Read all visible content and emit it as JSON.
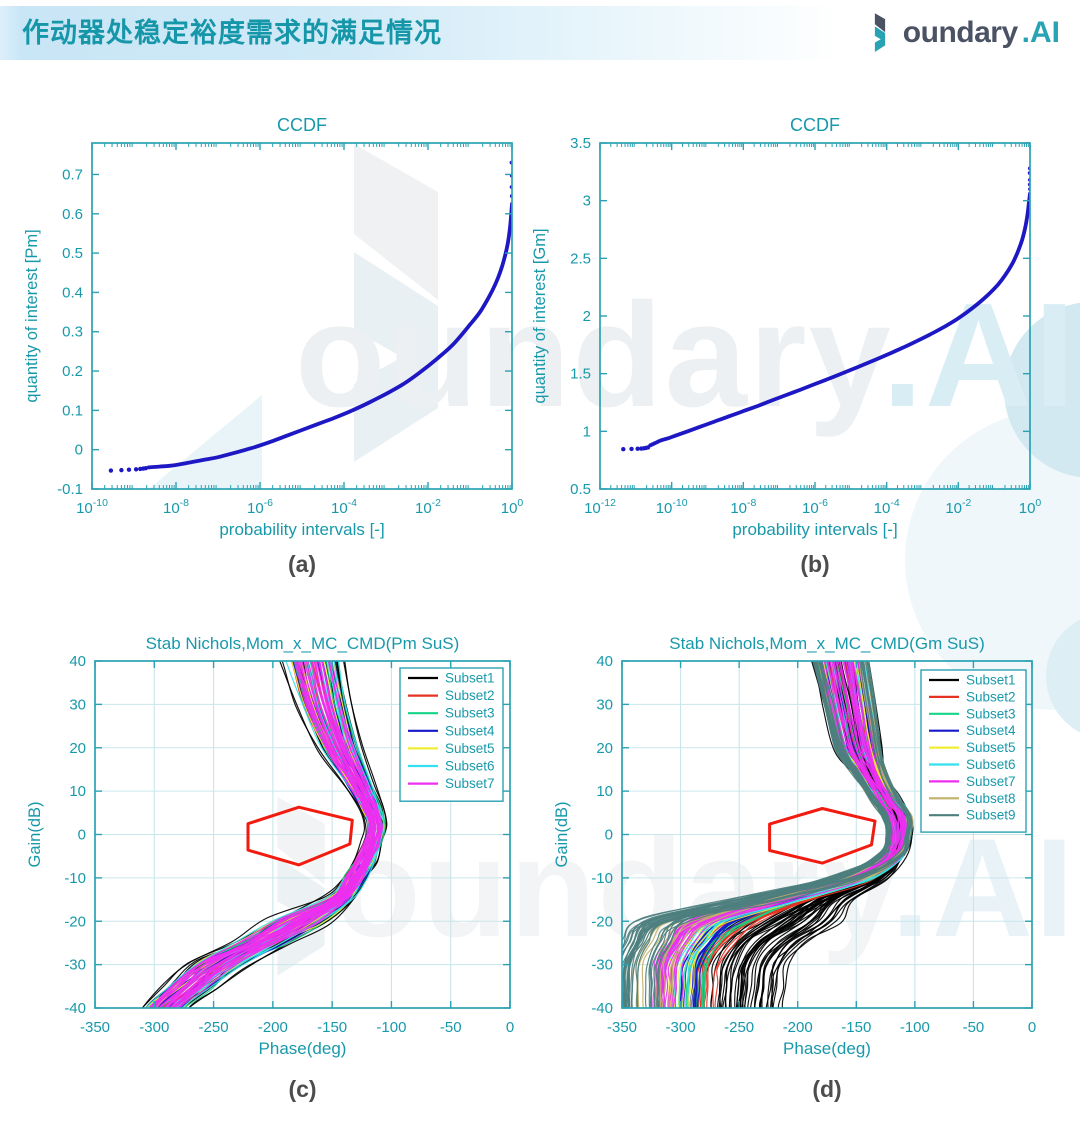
{
  "header": {
    "title": "作动器处稳定裕度需求的满足情况",
    "logo_text": "oundary",
    "logo_suffix": ".AI"
  },
  "watermark": {
    "text": "oundary",
    "suffix": ".AI"
  },
  "colors": {
    "axis_teal": "#2aa2b3",
    "label_teal": "#1899ab",
    "grid": "#c9e6ea",
    "curve_blue": "#1d18c4",
    "hexagon_red": "#f21b10",
    "caption_gray": "#4d4d4d",
    "header_text": "#1697a9",
    "logo_dark": "#4a5264",
    "logo_teal": "#27a3b4",
    "legend_border": "#2aa2b3"
  },
  "chart_data": [
    {
      "id": "a",
      "type": "scatter",
      "title": "CCDF",
      "caption": "(a)",
      "xlabel": "probability intervals [-]",
      "ylabel": "quantity of interest [Pm]",
      "xscale": "log",
      "xlim": [
        -10,
        0
      ],
      "xticks": [
        -10,
        -8,
        -6,
        -4,
        -2,
        0
      ],
      "ylim": [
        -0.1,
        0.78
      ],
      "yticks": [
        -0.1,
        0,
        0.1,
        0.2,
        0.3,
        0.4,
        0.5,
        0.6,
        0.7
      ],
      "grid": false,
      "curve": [
        [
          -8.65,
          -0.045
        ],
        [
          -8.4,
          -0.043
        ],
        [
          -8.15,
          -0.041
        ],
        [
          -7.9,
          -0.037
        ],
        [
          -7.6,
          -0.031
        ],
        [
          -7.3,
          -0.025
        ],
        [
          -7,
          -0.019
        ],
        [
          -6.6,
          -0.008
        ],
        [
          -6.2,
          0.004
        ],
        [
          -5.8,
          0.018
        ],
        [
          -5.4,
          0.034
        ],
        [
          -5,
          0.05
        ],
        [
          -4.6,
          0.066
        ],
        [
          -4.2,
          0.082
        ],
        [
          -3.8,
          0.1
        ],
        [
          -3.4,
          0.12
        ],
        [
          -3,
          0.142
        ],
        [
          -2.6,
          0.166
        ],
        [
          -2.2,
          0.196
        ],
        [
          -1.8,
          0.23
        ],
        [
          -1.4,
          0.268
        ],
        [
          -1,
          0.318
        ],
        [
          -0.75,
          0.352
        ],
        [
          -0.55,
          0.388
        ],
        [
          -0.4,
          0.42
        ],
        [
          -0.28,
          0.452
        ],
        [
          -0.18,
          0.487
        ],
        [
          -0.1,
          0.525
        ],
        [
          -0.05,
          0.562
        ],
        [
          -0.02,
          0.598
        ],
        [
          0,
          0.625
        ]
      ],
      "lead_dots": [
        [
          -9.55,
          -0.053
        ],
        [
          -9.3,
          -0.052
        ],
        [
          -9.12,
          -0.051
        ],
        [
          -8.95,
          -0.05
        ],
        [
          -8.85,
          -0.049
        ],
        [
          -8.78,
          -0.048
        ],
        [
          -8.72,
          -0.047
        ]
      ],
      "end_dots": [
        [
          -0.005,
          0.645
        ],
        [
          -0.01,
          0.668
        ],
        [
          -0.005,
          0.697
        ],
        [
          -0.012,
          0.73
        ]
      ]
    },
    {
      "id": "b",
      "type": "scatter",
      "title": "CCDF",
      "caption": "(b)",
      "xlabel": "probability intervals [-]",
      "ylabel": "quantity of interest [Gm]",
      "xscale": "log",
      "xlim": [
        -12,
        0
      ],
      "xticks": [
        -12,
        -10,
        -8,
        -6,
        -4,
        -2,
        0
      ],
      "ylim": [
        0.5,
        3.5
      ],
      "yticks": [
        0.5,
        1,
        1.5,
        2,
        2.5,
        3,
        3.5
      ],
      "grid": false,
      "curve": [
        [
          -10.6,
          0.878
        ],
        [
          -10.45,
          0.9
        ],
        [
          -10.3,
          0.921
        ],
        [
          -10.1,
          0.94
        ],
        [
          -9.9,
          0.962
        ],
        [
          -9.6,
          0.995
        ],
        [
          -9.2,
          1.04
        ],
        [
          -8.8,
          1.085
        ],
        [
          -8.4,
          1.13
        ],
        [
          -8,
          1.175
        ],
        [
          -7.6,
          1.22
        ],
        [
          -7.2,
          1.268
        ],
        [
          -6.8,
          1.315
        ],
        [
          -6.4,
          1.362
        ],
        [
          -6,
          1.41
        ],
        [
          -5.6,
          1.458
        ],
        [
          -5.2,
          1.508
        ],
        [
          -4.8,
          1.558
        ],
        [
          -4.4,
          1.61
        ],
        [
          -4,
          1.663
        ],
        [
          -3.6,
          1.718
        ],
        [
          -3.2,
          1.776
        ],
        [
          -2.8,
          1.838
        ],
        [
          -2.4,
          1.905
        ],
        [
          -2,
          1.98
        ],
        [
          -1.6,
          2.07
        ],
        [
          -1.2,
          2.175
        ],
        [
          -0.9,
          2.27
        ],
        [
          -0.7,
          2.35
        ],
        [
          -0.5,
          2.45
        ],
        [
          -0.35,
          2.55
        ],
        [
          -0.22,
          2.66
        ],
        [
          -0.13,
          2.77
        ],
        [
          -0.07,
          2.88
        ],
        [
          -0.03,
          2.98
        ],
        [
          0,
          3.06
        ]
      ],
      "lead_dots": [
        [
          -11.35,
          0.845
        ],
        [
          -11.12,
          0.847
        ],
        [
          -10.95,
          0.849
        ],
        [
          -10.85,
          0.851
        ],
        [
          -10.78,
          0.853
        ],
        [
          -10.72,
          0.856
        ],
        [
          -10.66,
          0.86
        ]
      ],
      "end_dots": [
        [
          0,
          3.1
        ],
        [
          -0.005,
          3.14
        ],
        [
          -0.003,
          3.18
        ],
        [
          -0.008,
          3.24
        ],
        [
          -0.004,
          3.28
        ]
      ]
    },
    {
      "id": "c",
      "type": "nichols",
      "title": "Stab Nichols,Mom_x_MC_CMD(Pm SuS)",
      "caption": "(c)",
      "xlabel": "Phase(deg)",
      "ylabel": "Gain(dB)",
      "xlim": [
        -350,
        0
      ],
      "xticks": [
        -350,
        -300,
        -250,
        -200,
        -150,
        -100,
        -50,
        0
      ],
      "ylim": [
        -40,
        40
      ],
      "yticks": [
        -40,
        -30,
        -20,
        -10,
        0,
        10,
        20,
        30,
        40
      ],
      "grid": true,
      "base": [
        [
          -172,
          46
        ],
        [
          -166,
          40
        ],
        [
          -157,
          30
        ],
        [
          -144,
          20
        ],
        [
          -128,
          12
        ],
        [
          -117,
          6
        ],
        [
          -113,
          2
        ],
        [
          -116,
          -2
        ],
        [
          -122,
          -6
        ],
        [
          -131,
          -10
        ],
        [
          -144,
          -15
        ],
        [
          -178,
          -20
        ],
        [
          -210,
          -25
        ],
        [
          -247,
          -30
        ],
        [
          -270,
          -35
        ],
        [
          -291,
          -40
        ],
        [
          -304,
          -45
        ]
      ],
      "sym": [
        30,
        27,
        24,
        19,
        13,
        10,
        9,
        9,
        10,
        11,
        13,
        26,
        25,
        25,
        23,
        21,
        20
      ],
      "fan": [
        0,
        0,
        0,
        0,
        0,
        0,
        0,
        0,
        0,
        0,
        0,
        0,
        0,
        0,
        0,
        0,
        0
      ],
      "subsets": [
        {
          "label": "Subset1",
          "color": "#000000",
          "count": 20,
          "fband": [
            0.3,
            1.0
          ],
          "cband": [
            0,
            0
          ]
        },
        {
          "label": "Subset2",
          "color": "#e63222",
          "count": 10,
          "fband": [
            0.05,
            0.75
          ],
          "cband": [
            0,
            0
          ]
        },
        {
          "label": "Subset3",
          "color": "#16d487",
          "count": 10,
          "fband": [
            0.1,
            0.8
          ],
          "cband": [
            0,
            0
          ]
        },
        {
          "label": "Subset4",
          "color": "#1717cc",
          "count": 9,
          "fband": [
            0.05,
            0.7
          ],
          "cband": [
            0,
            0
          ]
        },
        {
          "label": "Subset5",
          "color": "#f2ee35",
          "count": 8,
          "fband": [
            0.15,
            0.7
          ],
          "cband": [
            0,
            0
          ]
        },
        {
          "label": "Subset6",
          "color": "#33e0ee",
          "count": 8,
          "fband": [
            0.2,
            0.8
          ],
          "cband": [
            0,
            0
          ]
        },
        {
          "label": "Subset7",
          "color": "#ee2ef0",
          "count": 30,
          "fband": [
            0,
            0.6
          ],
          "cband": [
            0,
            0
          ]
        }
      ],
      "hexagon": [
        [
          -221,
          2.5
        ],
        [
          -178,
          6.3
        ],
        [
          -133,
          3.3
        ],
        [
          -135,
          -2.2
        ],
        [
          -178,
          -7
        ],
        [
          -221,
          -3.6
        ]
      ]
    },
    {
      "id": "d",
      "type": "nichols",
      "title": "Stab Nichols,Mom_x_MC_CMD(Gm SuS)",
      "caption": "(d)",
      "xlabel": "Phase(deg)",
      "ylabel": "Gain(dB)",
      "xlim": [
        -350,
        0
      ],
      "xticks": [
        -350,
        -300,
        -250,
        -200,
        -150,
        -100,
        -50,
        0
      ],
      "ylim": [
        -40,
        40
      ],
      "yticks": [
        -40,
        -30,
        -20,
        -10,
        0,
        10,
        20,
        30,
        40
      ],
      "grid": true,
      "base": [
        [
          -168,
          46
        ],
        [
          -163,
          40
        ],
        [
          -156,
          30
        ],
        [
          -148,
          20
        ],
        [
          -138,
          14
        ],
        [
          -125,
          8
        ],
        [
          -115,
          4
        ],
        [
          -112,
          0
        ],
        [
          -116,
          -5
        ],
        [
          -130,
          -10
        ],
        [
          -160,
          -15
        ],
        [
          -170,
          -20
        ],
        [
          -200,
          -25
        ],
        [
          -215,
          -30
        ],
        [
          -218,
          -35
        ],
        [
          -220,
          -40
        ],
        [
          -218,
          -44
        ]
      ],
      "sym": [
        26,
        24,
        22,
        20,
        14,
        12,
        12,
        10,
        10,
        11,
        12,
        13,
        13,
        13,
        13,
        13,
        13
      ],
      "fan": [
        0,
        0,
        0,
        0,
        0,
        0,
        0,
        2,
        6,
        30,
        80,
        155,
        140,
        133,
        130,
        128,
        126
      ],
      "subsets": [
        {
          "label": "Subset1",
          "color": "#000000",
          "count": 45,
          "fband": [
            0,
            1.0
          ],
          "cband": [
            0.02,
            0.45
          ]
        },
        {
          "label": "Subset2",
          "color": "#e63222",
          "count": 12,
          "fband": [
            0.1,
            0.8
          ],
          "cband": [
            0.42,
            0.52
          ]
        },
        {
          "label": "Subset3",
          "color": "#16d487",
          "count": 12,
          "fband": [
            0.15,
            0.85
          ],
          "cband": [
            0.5,
            0.58
          ]
        },
        {
          "label": "Subset4",
          "color": "#1717cc",
          "count": 10,
          "fband": [
            0.1,
            0.7
          ],
          "cband": [
            0.55,
            0.63
          ]
        },
        {
          "label": "Subset5",
          "color": "#f2ee35",
          "count": 10,
          "fband": [
            0.15,
            0.75
          ],
          "cband": [
            0.6,
            0.68
          ]
        },
        {
          "label": "Subset6",
          "color": "#33e0ee",
          "count": 10,
          "fband": [
            0.25,
            0.85
          ],
          "cband": [
            0.65,
            0.73
          ]
        },
        {
          "label": "Subset7",
          "color": "#ee2ef0",
          "count": 30,
          "fband": [
            0,
            0.8
          ],
          "cband": [
            0.68,
            0.8
          ]
        },
        {
          "label": "Subset8",
          "color": "#c1b069",
          "count": 10,
          "fband": [
            0.6,
            0.95
          ],
          "cband": [
            0.77,
            0.88
          ]
        },
        {
          "label": "Subset9",
          "color": "#4d7f7f",
          "count": 35,
          "fband": [
            0.65,
            1.0
          ],
          "cband": [
            0.84,
            1.0
          ]
        }
      ],
      "hexagon": [
        [
          -224,
          2.4
        ],
        [
          -179,
          6
        ],
        [
          -134,
          3.1
        ],
        [
          -137,
          -2.4
        ],
        [
          -179,
          -6.6
        ],
        [
          -224,
          -3.7
        ]
      ]
    }
  ]
}
